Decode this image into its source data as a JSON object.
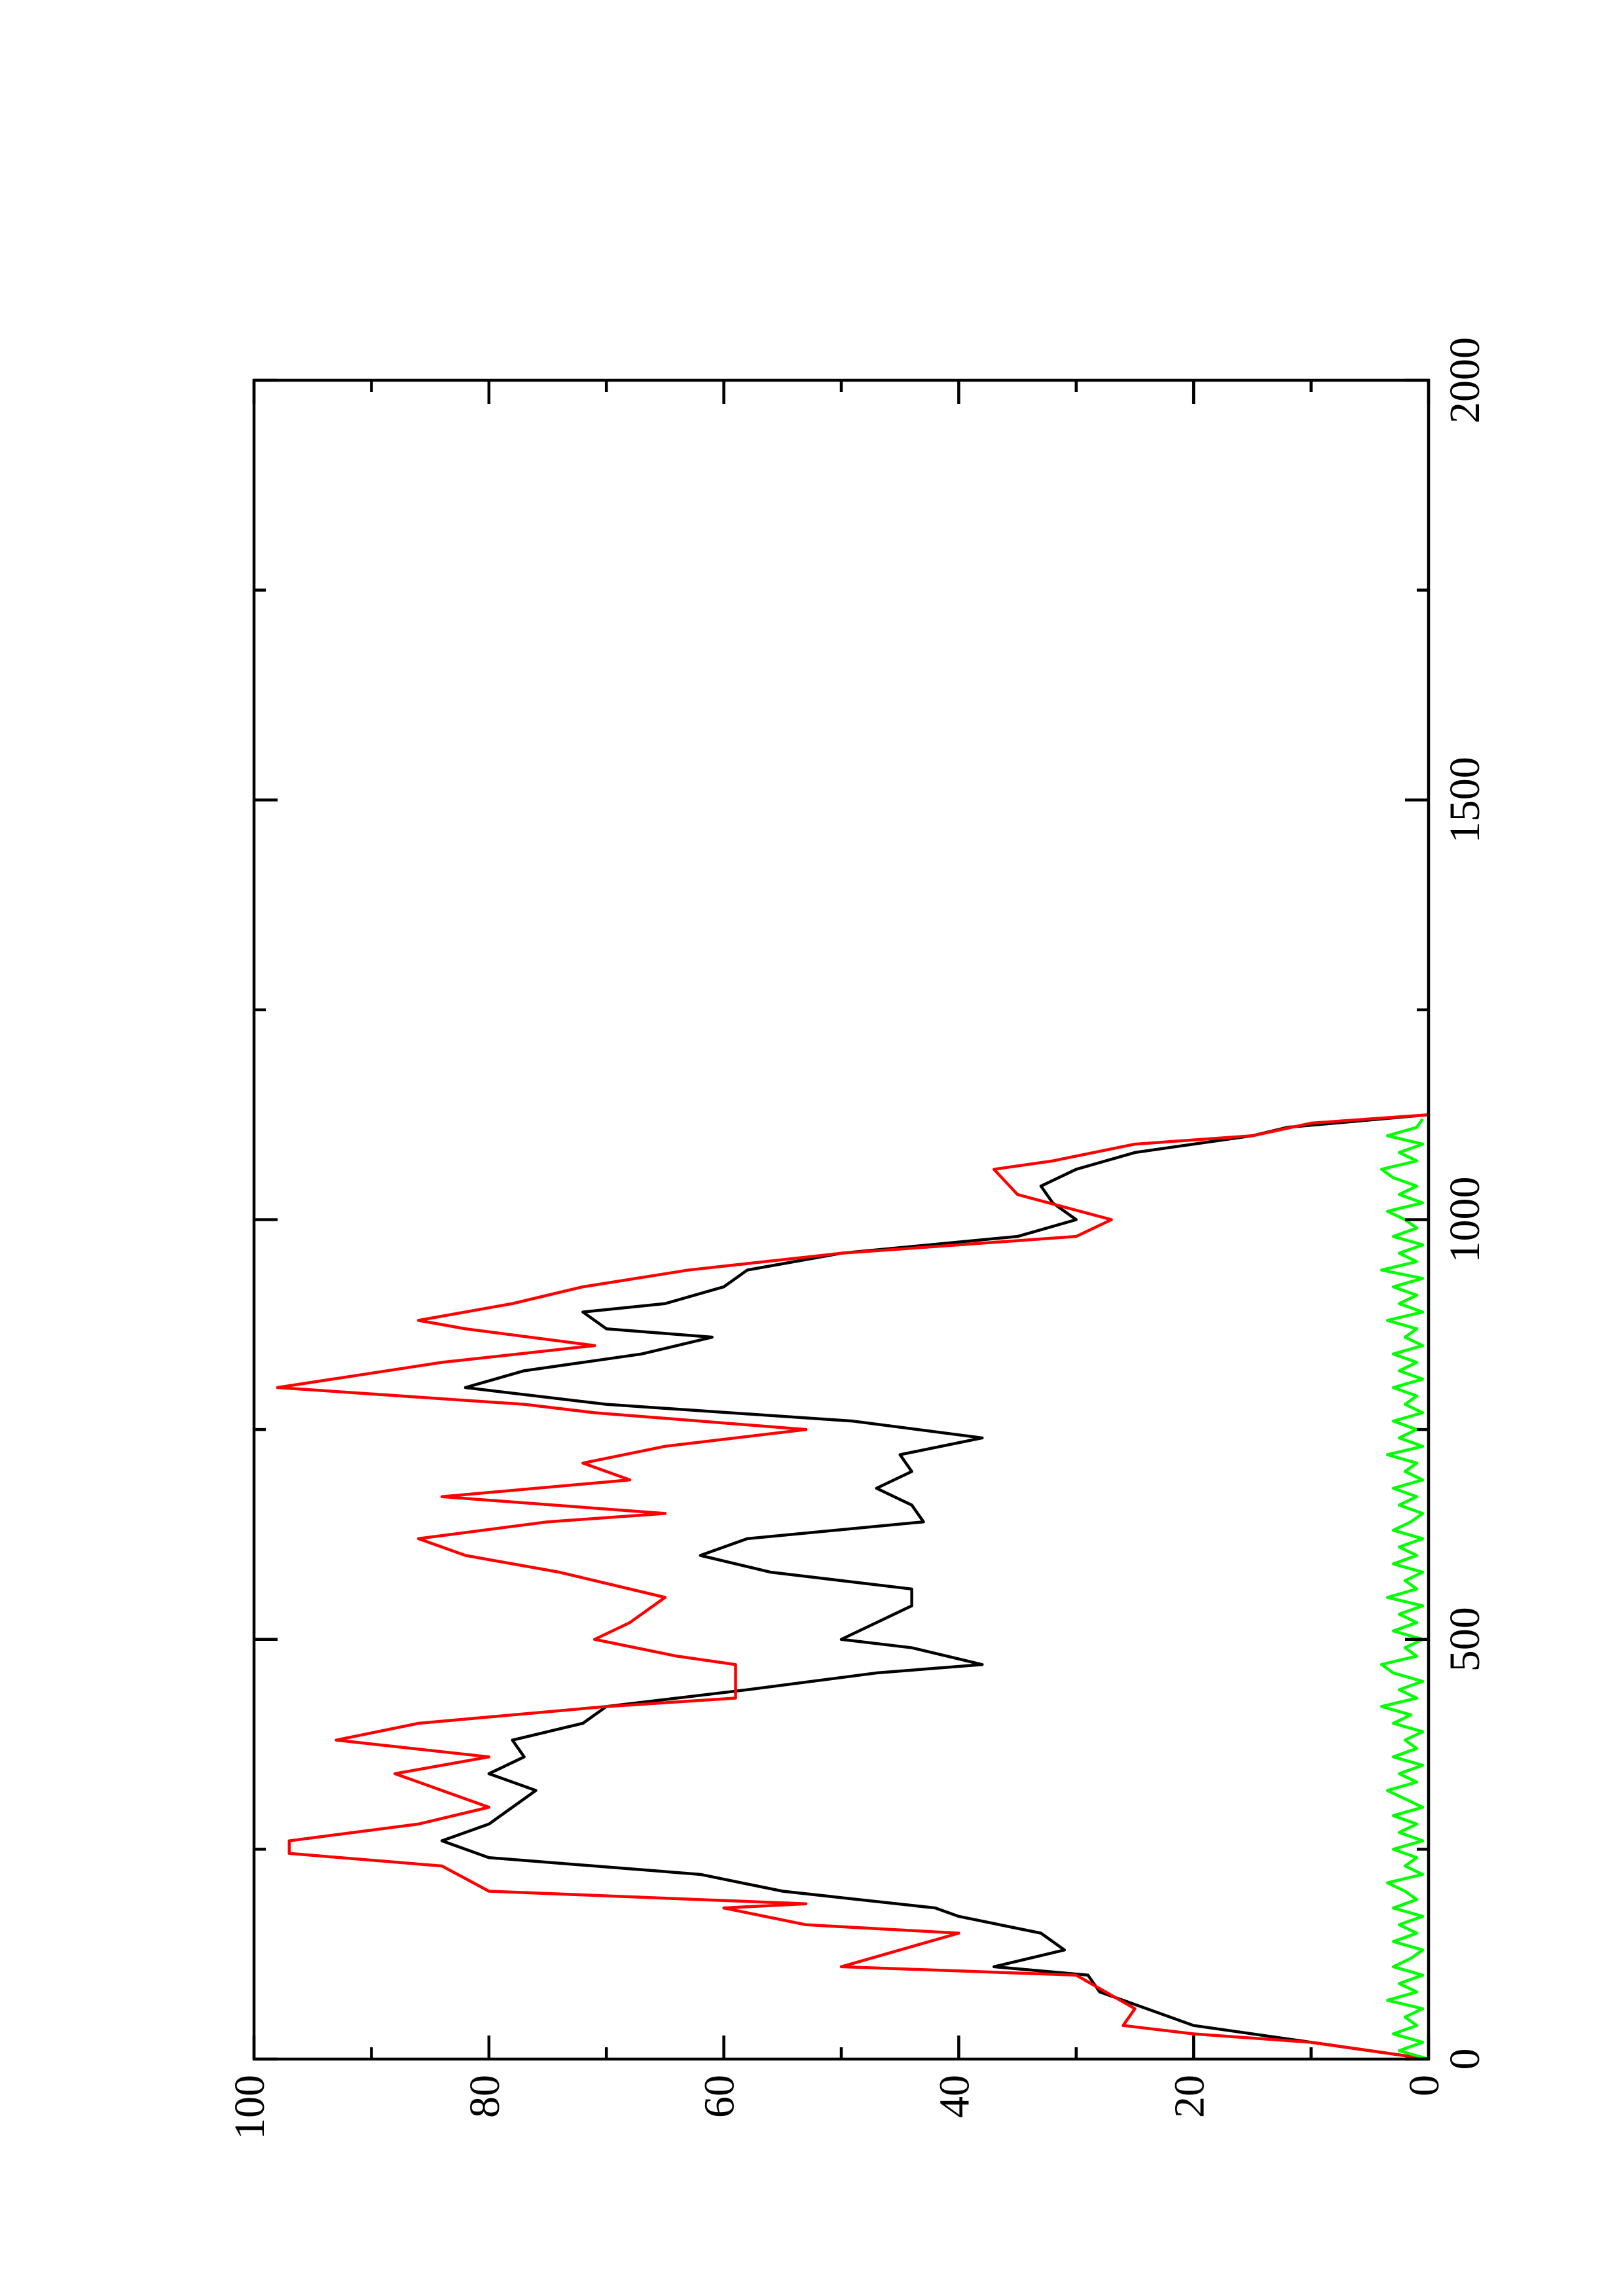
{
  "chart_data": {
    "type": "line",
    "xlim": [
      0,
      2000
    ],
    "xticks": [
      0,
      500,
      1000,
      1500,
      2000
    ],
    "xminorticks": [
      250,
      750,
      1250,
      1750
    ],
    "ylim": [
      0,
      100
    ],
    "yticks": [
      0,
      20,
      40,
      60,
      80,
      100
    ],
    "yminorticks": [
      10,
      30,
      50,
      70,
      90
    ],
    "rotated": true,
    "series": [
      {
        "color": "#000000",
        "x": [
          0,
          20,
          40,
          60,
          80,
          100,
          110,
          130,
          150,
          170,
          180,
          200,
          220,
          240,
          260,
          280,
          300,
          320,
          340,
          360,
          380,
          400,
          420,
          440,
          460,
          470,
          490,
          500,
          520,
          540,
          560,
          580,
          600,
          620,
          640,
          660,
          680,
          700,
          720,
          740,
          760,
          780,
          800,
          820,
          840,
          860,
          870,
          890,
          900,
          920,
          940,
          960,
          980,
          1000,
          1020,
          1040,
          1060,
          1080,
          1100,
          1110,
          1125
        ],
        "values": [
          0,
          10,
          20,
          24,
          28,
          29,
          37,
          31,
          33,
          40,
          42,
          55,
          62,
          80,
          84,
          80,
          78,
          76,
          80,
          77,
          78,
          72,
          70,
          58,
          47,
          38,
          44,
          50,
          47,
          44,
          44,
          56,
          62,
          58,
          43,
          44,
          47,
          44,
          45,
          38,
          49,
          70,
          82,
          77,
          67,
          61,
          70,
          72,
          65,
          60,
          58,
          50,
          35,
          30,
          32,
          33,
          30,
          25,
          15,
          12,
          0
        ]
      },
      {
        "color": "#ff0000",
        "x": [
          0,
          20,
          30,
          40,
          60,
          100,
          110,
          150,
          160,
          180,
          185,
          200,
          230,
          245,
          260,
          280,
          300,
          320,
          340,
          360,
          380,
          400,
          420,
          430,
          470,
          480,
          500,
          520,
          550,
          580,
          600,
          620,
          640,
          650,
          670,
          690,
          710,
          730,
          750,
          770,
          780,
          800,
          830,
          850,
          870,
          880,
          900,
          920,
          940,
          960,
          980,
          1000,
          1030,
          1060,
          1070,
          1090,
          1100,
          1115,
          1125
        ],
        "values": [
          0,
          10,
          20,
          26,
          25,
          30,
          50,
          40,
          53,
          60,
          53,
          80,
          84,
          97,
          97,
          86,
          80,
          84,
          88,
          80,
          93,
          86,
          70,
          59,
          59,
          64,
          71,
          68,
          65,
          74,
          82,
          86,
          75,
          65,
          84,
          68,
          72,
          65,
          53,
          71,
          77,
          98,
          84,
          71,
          82,
          86,
          78,
          72,
          63,
          50,
          30,
          27,
          35,
          37,
          32,
          25,
          15,
          10,
          0
        ]
      },
      {
        "color": "#00ff00",
        "x": [
          0,
          10,
          20,
          30,
          40,
          50,
          60,
          70,
          80,
          90,
          100,
          110,
          120,
          130,
          140,
          150,
          160,
          170,
          180,
          190,
          200,
          210,
          220,
          230,
          240,
          250,
          260,
          270,
          280,
          290,
          300,
          310,
          320,
          330,
          340,
          350,
          360,
          370,
          380,
          390,
          400,
          410,
          420,
          430,
          440,
          450,
          460,
          470,
          480,
          490,
          500,
          510,
          520,
          530,
          540,
          550,
          560,
          570,
          580,
          590,
          600,
          610,
          620,
          630,
          640,
          650,
          660,
          670,
          680,
          690,
          700,
          710,
          720,
          730,
          740,
          750,
          760,
          770,
          780,
          790,
          800,
          810,
          820,
          830,
          840,
          850,
          860,
          870,
          880,
          890,
          900,
          910,
          920,
          930,
          940,
          950,
          960,
          970,
          980,
          990,
          1000,
          1010,
          1020,
          1030,
          1040,
          1050,
          1060,
          1070,
          1080,
          1090,
          1100,
          1110,
          1120
        ],
        "values": [
          0,
          2.5,
          0.5,
          3,
          1,
          2,
          0.5,
          3.5,
          1,
          2.5,
          0.5,
          3,
          1.5,
          0.5,
          3,
          1,
          2.5,
          0.5,
          3,
          1,
          2,
          3.5,
          0.5,
          2,
          1,
          3,
          0.5,
          2.5,
          1,
          3,
          0.5,
          2,
          3.5,
          1,
          2.5,
          0.5,
          3,
          1,
          2,
          0.5,
          3,
          1.5,
          4,
          1,
          2.5,
          0.5,
          3,
          4,
          1,
          2,
          0.5,
          3,
          1,
          2.5,
          0.5,
          3.5,
          1,
          2,
          0.5,
          3,
          1,
          2.5,
          0.5,
          3,
          1.5,
          0.5,
          2.5,
          1,
          3,
          0.5,
          2,
          1,
          3.5,
          0.5,
          2.5,
          1,
          3,
          0.5,
          2,
          1,
          3,
          0.5,
          2.5,
          1,
          3,
          0.5,
          2,
          1,
          3.5,
          0.5,
          2.5,
          1,
          3,
          0.5,
          4,
          1,
          2.5,
          0.5,
          3,
          1,
          2,
          3.5,
          0.5,
          2.5,
          1,
          3,
          4,
          1,
          2.5,
          0.5,
          3.5,
          1,
          0.5
        ]
      }
    ]
  }
}
